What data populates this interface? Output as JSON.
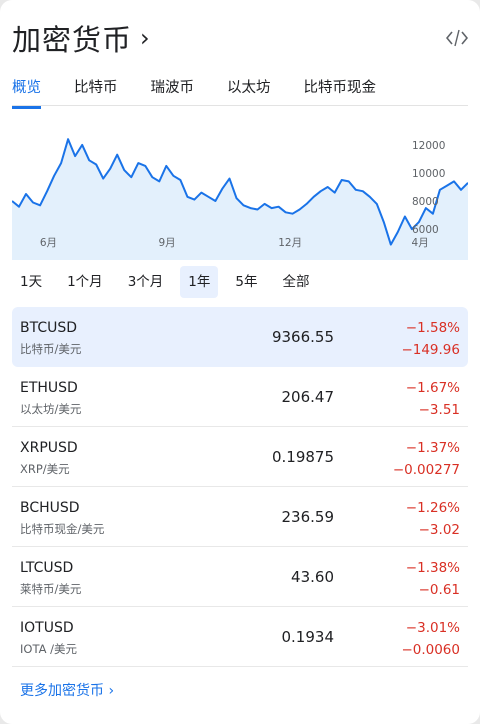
{
  "header": {
    "title": "加密货币",
    "chevron": "›",
    "embed_icon": "code-icon"
  },
  "tabs": [
    {
      "label": "概览",
      "active": true
    },
    {
      "label": "比特币",
      "active": false
    },
    {
      "label": "瑞波币",
      "active": false
    },
    {
      "label": "以太坊",
      "active": false
    },
    {
      "label": "比特币现金",
      "active": false
    }
  ],
  "chart_data": {
    "type": "area",
    "title": "",
    "xlabel": "",
    "ylabel": "",
    "x_ticks": [
      "6月",
      "9月",
      "12月",
      "4月"
    ],
    "y_ticks": [
      6000,
      8000,
      10000,
      12000
    ],
    "ylim": [
      4800,
      13200
    ],
    "grid": false,
    "line_color": "#1a73e8",
    "fill_color": "#e3f0fc",
    "series": [
      {
        "name": "",
        "values": [
          8000,
          7600,
          8500,
          7900,
          7700,
          8700,
          9800,
          10700,
          12400,
          11200,
          12000,
          10900,
          10600,
          9600,
          10300,
          11300,
          10200,
          9700,
          10700,
          10500,
          9700,
          9400,
          10500,
          9800,
          9500,
          8300,
          8100,
          8600,
          8300,
          8000,
          8900,
          9600,
          8200,
          7700,
          7500,
          7400,
          7800,
          7500,
          7600,
          7200,
          7100,
          7400,
          7800,
          8300,
          8700,
          9000,
          8600,
          9500,
          9400,
          8800,
          8700,
          8300,
          7800,
          6500,
          4900,
          5800,
          6900,
          6000,
          6500,
          7500,
          7100,
          8800,
          9100,
          9400,
          8800,
          9300
        ]
      }
    ]
  },
  "ranges": [
    {
      "label": "1天",
      "active": false
    },
    {
      "label": "1个月",
      "active": false
    },
    {
      "label": "3个月",
      "active": false
    },
    {
      "label": "1年",
      "active": true
    },
    {
      "label": "5年",
      "active": false
    },
    {
      "label": "全部",
      "active": false
    }
  ],
  "rows": [
    {
      "symbol": "BTCUSD",
      "name": "比特币/美元",
      "price": "9366.55",
      "pct": "−1.58%",
      "change": "−149.96"
    },
    {
      "symbol": "ETHUSD",
      "name": "以太坊/美元",
      "price": "206.47",
      "pct": "−1.67%",
      "change": "−3.51"
    },
    {
      "symbol": "XRPUSD",
      "name": "XRP/美元",
      "price": "0.19875",
      "pct": "−1.37%",
      "change": "−0.00277"
    },
    {
      "symbol": "BCHUSD",
      "name": "比特币现金/美元",
      "price": "236.59",
      "pct": "−1.26%",
      "change": "−3.02"
    },
    {
      "symbol": "LTCUSD",
      "name": "莱特币/美元",
      "price": "43.60",
      "pct": "−1.38%",
      "change": "−0.61"
    },
    {
      "symbol": "IOTUSD",
      "name": "IOTA /美元",
      "price": "0.1934",
      "pct": "−3.01%",
      "change": "−0.0060"
    }
  ],
  "footer": {
    "more_label": "更多加密货币",
    "more_chevron": "›"
  },
  "colors": {
    "accent": "#1a73e8",
    "negative": "#d93025",
    "selected_bg": "#e8f0fe"
  }
}
